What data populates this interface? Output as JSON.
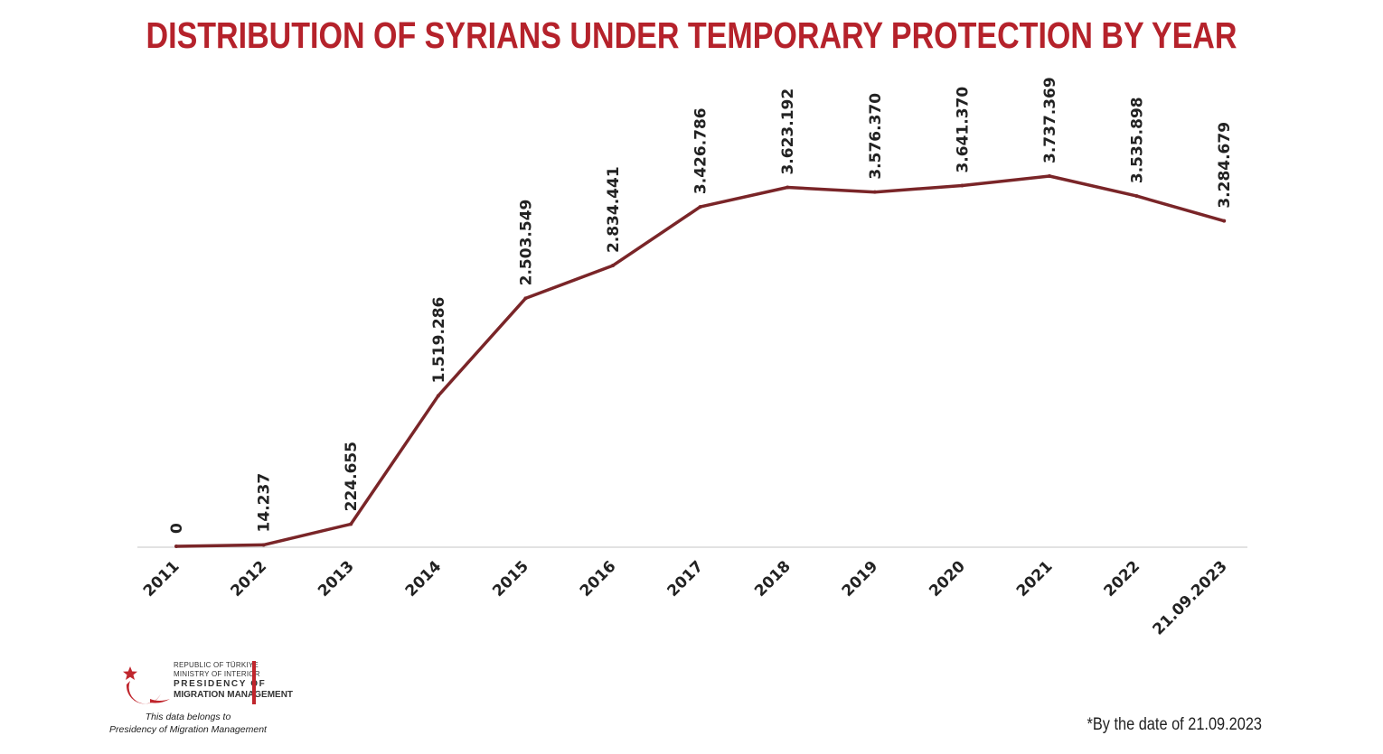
{
  "chart_data": {
    "type": "line",
    "title": "DISTRIBUTION OF SYRIANS UNDER TEMPORARY PROTECTION BY YEAR",
    "categories": [
      "2011",
      "2012",
      "2013",
      "2014",
      "2015",
      "2016",
      "2017",
      "2018",
      "2019",
      "2020",
      "2021",
      "2022",
      "21.09.2023"
    ],
    "values": [
      0,
      14237,
      224655,
      1519286,
      2503549,
      2834441,
      3426786,
      3623192,
      3576370,
      3641370,
      3737369,
      3535898,
      3284679
    ],
    "data_labels": [
      "0",
      "14.237",
      "224.655",
      "1.519.286",
      "2.503.549",
      "2.834.441",
      "3.426.786",
      "3.623.192",
      "3.576.370",
      "3.641.370",
      "3.737.369",
      "3.535.898",
      "3.284.679"
    ],
    "xlabel": "",
    "ylabel": "",
    "ylim": [
      0,
      3737369
    ],
    "grid": false,
    "legend": "none",
    "line_color": "#7a2528",
    "axis_color": "#d9d9d9"
  },
  "title_color": "#b5222b",
  "logo": {
    "line1": "REPUBLIC OF TÜRKIYE",
    "line2": "MINISTRY OF INTERIOR",
    "line3": "PRESIDENCY OF",
    "line4": "MIGRATION MANAGEMENT",
    "color": "#c0262d"
  },
  "credit": {
    "line1": "This data belongs to",
    "line2": "Presidency of Migration Management"
  },
  "footnote": "*By the date of 21.09.2023"
}
